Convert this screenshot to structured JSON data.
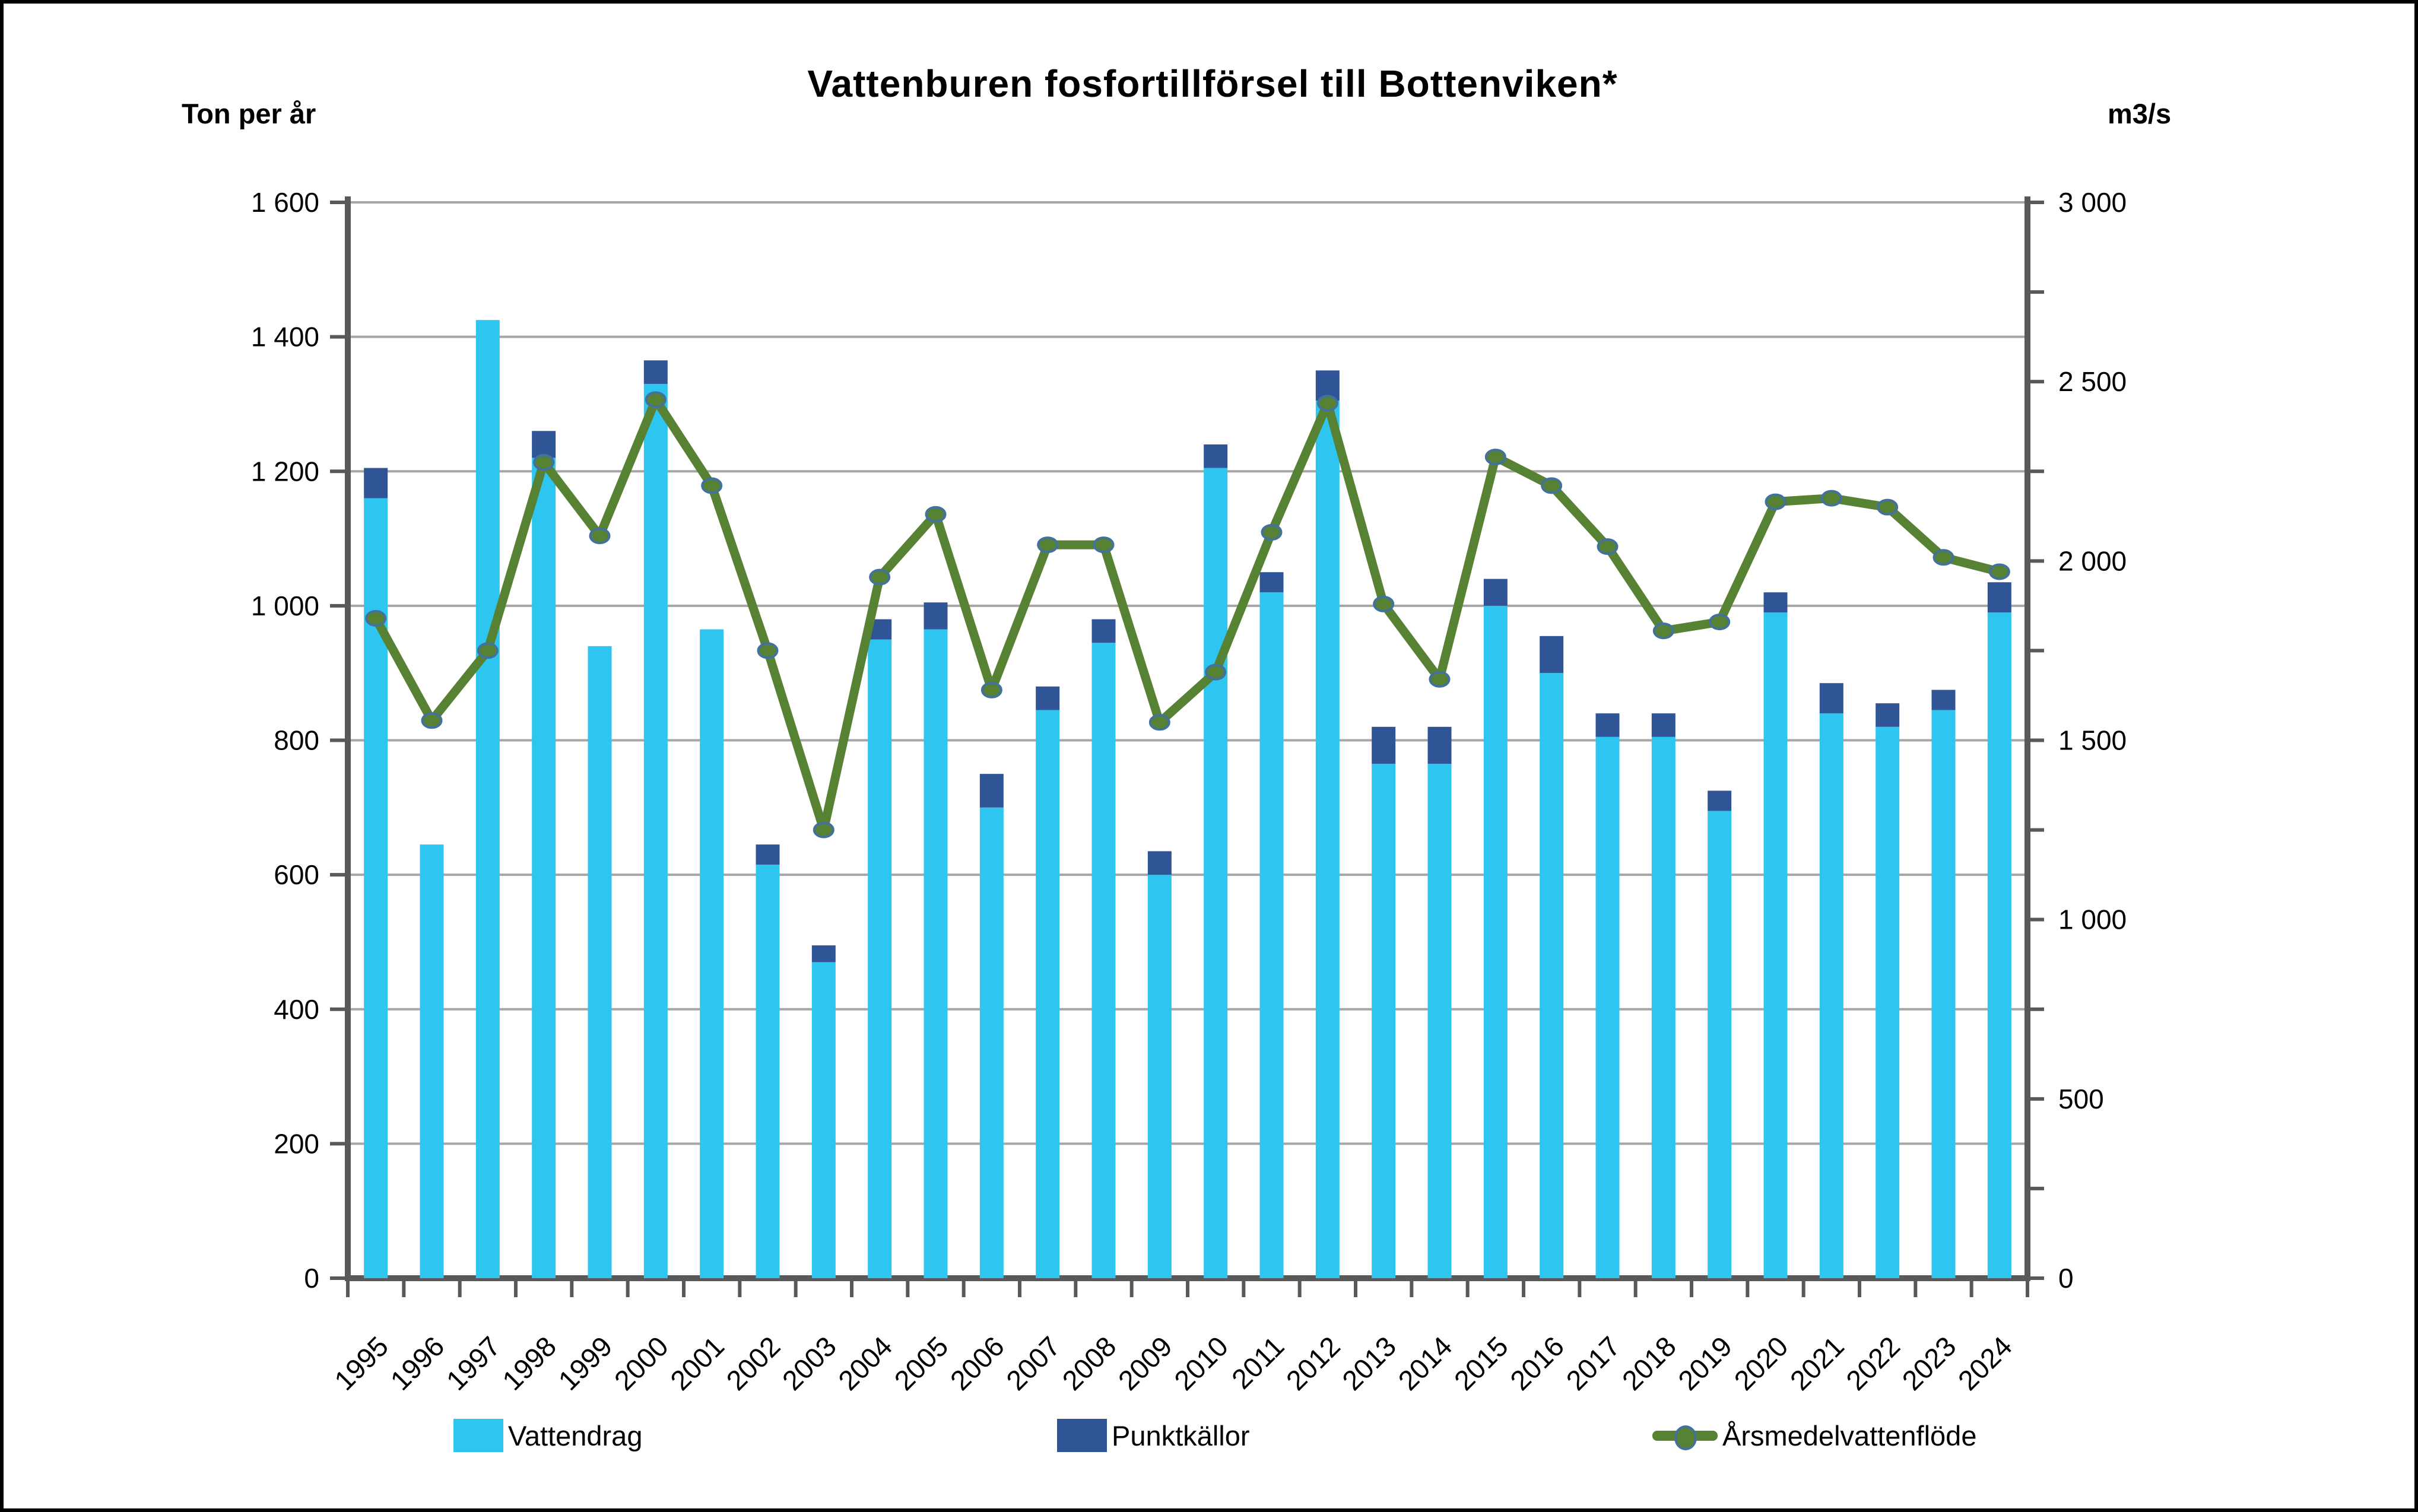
{
  "title": "Vattenburen fosfortillförsel till Bottenviken*",
  "left_axis": {
    "unit_label": "Ton per år",
    "min": 0,
    "max": 1600,
    "step": 200
  },
  "right_axis": {
    "unit_label": "m3/s",
    "min": 0,
    "max": 3000,
    "label_step": 500,
    "tick_step": 250
  },
  "colors": {
    "vattendrag": "#2EC6F0",
    "punktkallor": "#2F5597",
    "flow_line": "#578233",
    "marker_stroke": "#41719C",
    "gridline": "#A6A6A6",
    "axis": "#595959",
    "text": "#000000",
    "background": "#FFFFFF"
  },
  "legend": {
    "items": [
      {
        "label": "Vattendrag",
        "type": "bar",
        "color": "#2EC6F0"
      },
      {
        "label": "Punktkällor",
        "type": "bar",
        "color": "#2F5597"
      },
      {
        "label": "Årsmedelvattenflöde",
        "type": "line",
        "color": "#578233"
      }
    ]
  },
  "chart_data": {
    "type": "bar",
    "subtype": "stacked-bars-with-secondary-axis-line",
    "title": "Vattenburen fosfortillförsel till Bottenviken*",
    "xlabel": "",
    "ylabel_left": "Ton per år",
    "ylabel_right": "m3/s",
    "left_ylim": [
      0,
      1600
    ],
    "right_ylim": [
      0,
      3000
    ],
    "grid": true,
    "legend_position": "bottom",
    "categories": [
      1995,
      1996,
      1997,
      1998,
      1999,
      2000,
      2001,
      2002,
      2003,
      2004,
      2005,
      2006,
      2007,
      2008,
      2009,
      2010,
      2011,
      2012,
      2013,
      2014,
      2015,
      2016,
      2017,
      2018,
      2019,
      2020,
      2021,
      2022,
      2023,
      2024
    ],
    "series": [
      {
        "name": "Vattendrag",
        "type": "bar",
        "stacked": true,
        "axis": "left",
        "unit": "ton/år",
        "color": "#2EC6F0",
        "values": [
          1160,
          645,
          1425,
          1220,
          940,
          1330,
          965,
          615,
          470,
          950,
          965,
          700,
          845,
          945,
          600,
          1205,
          1020,
          1305,
          765,
          765,
          1000,
          900,
          805,
          805,
          695,
          990,
          840,
          820,
          845,
          990
        ]
      },
      {
        "name": "Punktkällor",
        "type": "bar",
        "stacked": true,
        "axis": "left",
        "unit": "ton/år",
        "color": "#2F5597",
        "values": [
          45,
          0,
          0,
          40,
          0,
          35,
          0,
          30,
          25,
          30,
          40,
          50,
          35,
          35,
          35,
          35,
          30,
          45,
          55,
          55,
          40,
          55,
          35,
          35,
          30,
          30,
          45,
          35,
          30,
          45
        ]
      },
      {
        "name": "Årsmedelvattenflöde",
        "type": "line",
        "axis": "right",
        "unit": "m3/s",
        "color": "#578233",
        "values": [
          1840,
          1555,
          1750,
          2275,
          2070,
          2450,
          2210,
          1750,
          1250,
          1955,
          2130,
          1640,
          2045,
          2045,
          1550,
          1690,
          2080,
          2440,
          1880,
          1670,
          2290,
          2210,
          2040,
          1805,
          1830,
          2165,
          2175,
          2150,
          2010,
          1970
        ]
      }
    ]
  }
}
